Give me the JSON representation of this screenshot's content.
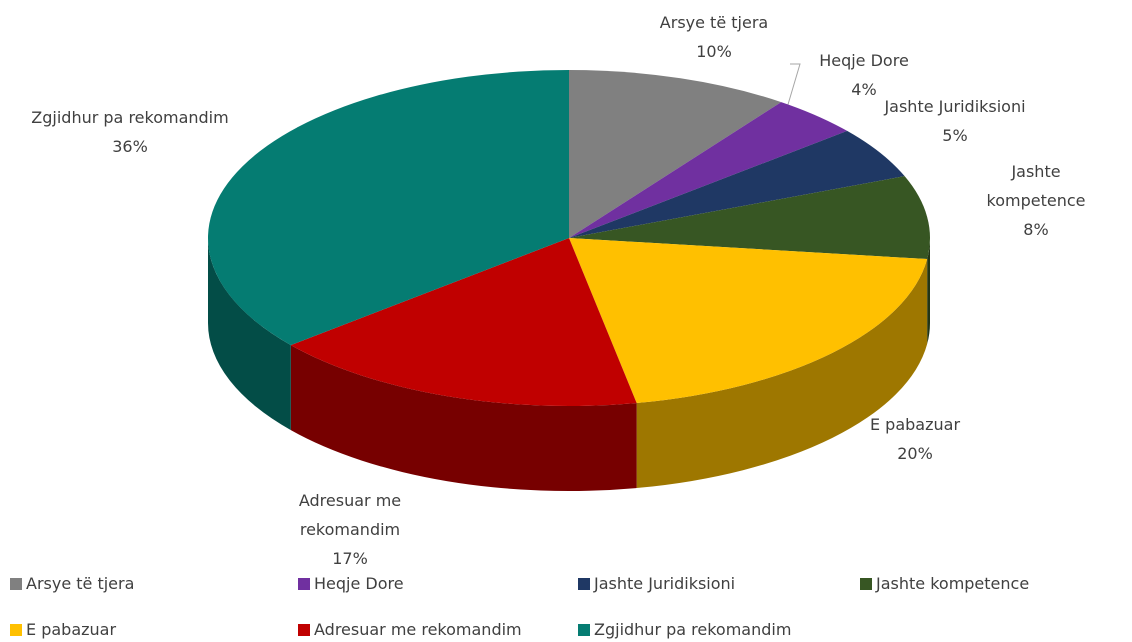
{
  "chart_data": {
    "type": "pie",
    "categories": [
      "Arsye të tjera",
      "Heqje Dore",
      "Jashte Juridiksioni",
      "Jashte kompetence",
      "E pabazuar",
      "Adresuar me rekomandim",
      "Zgjidhur pa rekomandim"
    ],
    "values": [
      10,
      4,
      5,
      8,
      20,
      17,
      36
    ],
    "value_labels": [
      "10%",
      "4%",
      "5%",
      "8%",
      "20%",
      "17%",
      "36%"
    ],
    "colors": [
      "#808080",
      "#7030a0",
      "#1f3864",
      "#375623",
      "#ffc000",
      "#c00000",
      "#057c72"
    ],
    "legend": "bottom"
  }
}
